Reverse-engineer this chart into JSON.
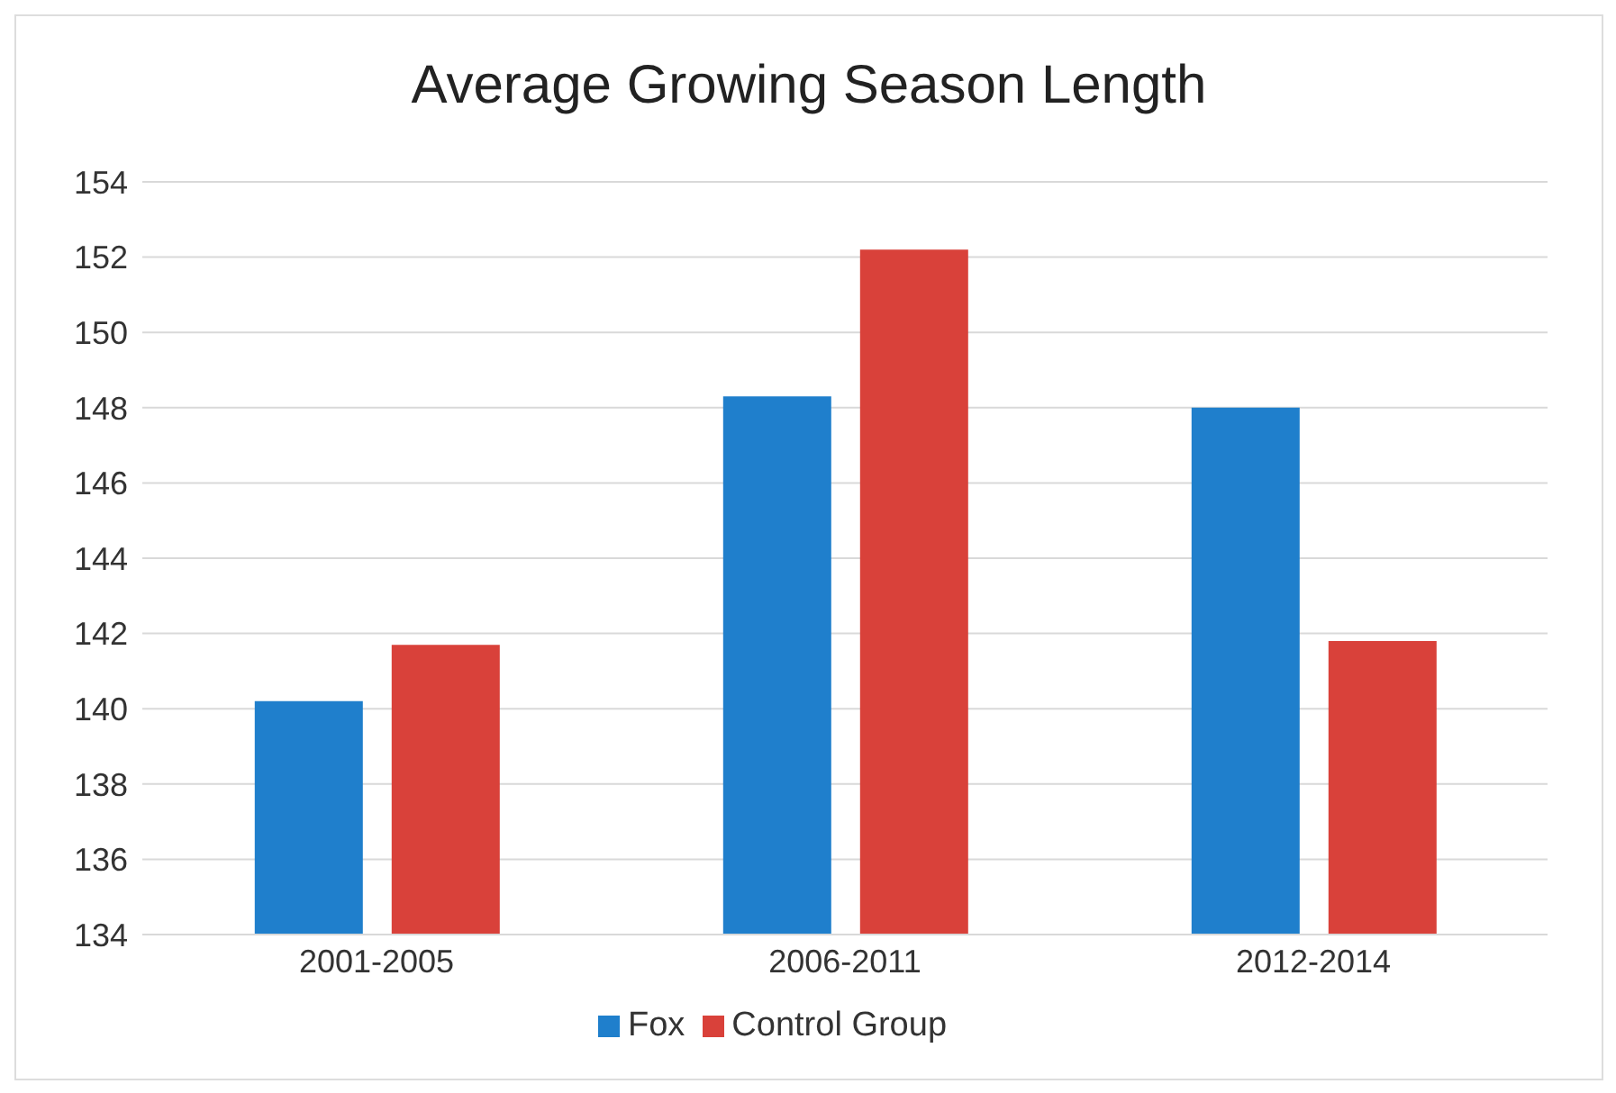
{
  "chart_data": {
    "type": "bar",
    "title": "Average Growing Season Length",
    "categories": [
      "2001-2005",
      "2006-2011",
      "2012-2014"
    ],
    "series": [
      {
        "name": "Fox",
        "color": "#1f7fcc",
        "values": [
          140.2,
          148.3,
          148.0
        ]
      },
      {
        "name": "Control Group",
        "color": "#d9413a",
        "values": [
          141.7,
          152.2,
          141.8
        ]
      }
    ],
    "ylim": [
      134,
      154
    ],
    "yticks": [
      134,
      136,
      138,
      140,
      142,
      144,
      146,
      148,
      150,
      152,
      154
    ],
    "grid": "y",
    "legend": "bottom"
  }
}
